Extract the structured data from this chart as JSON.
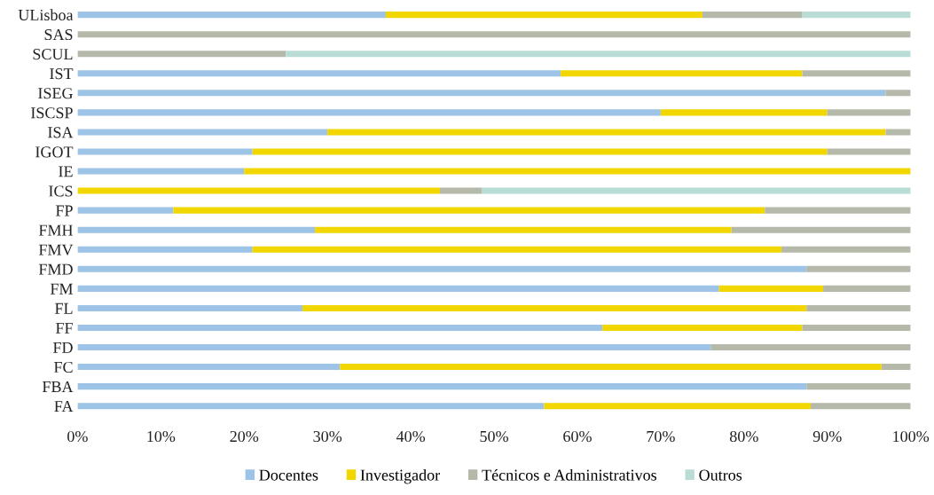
{
  "chart_data": {
    "type": "bar",
    "orientation": "horizontal",
    "stacked": true,
    "categories": [
      "ULisboa",
      "SAS",
      "SCUL",
      "IST",
      "ISEG",
      "ISCSP",
      "ISA",
      "IGOT",
      "IE",
      "ICS",
      "FP",
      "FMH",
      "FMV",
      "FMD",
      "FM",
      "FL",
      "FF",
      "FD",
      "FC",
      "FBA",
      "FA"
    ],
    "series": [
      {
        "name": "Docentes",
        "color": "#9dc3e6",
        "values": [
          37,
          0,
          0,
          58,
          97,
          70,
          30,
          21,
          20,
          0,
          11.5,
          28.5,
          21,
          87.5,
          77,
          27,
          63,
          76,
          31.5,
          87.5,
          56
        ]
      },
      {
        "name": "Investigador",
        "color": "#f2d600",
        "values": [
          38,
          0,
          0,
          29,
          0,
          20,
          67,
          69,
          80,
          43.5,
          71,
          50,
          63.5,
          0,
          12.5,
          60.5,
          24,
          0,
          65,
          0,
          32
        ]
      },
      {
        "name": "Técnicos e Administrativos",
        "color": "#b5b9a9",
        "values": [
          12,
          100,
          25,
          13,
          3,
          10,
          3,
          10,
          0,
          5,
          17.5,
          21.5,
          15.5,
          12.5,
          10.5,
          12.5,
          13,
          24,
          3.5,
          12.5,
          12
        ]
      },
      {
        "name": "Outros",
        "color": "#b9ddd6",
        "values": [
          13,
          0,
          75,
          0,
          0,
          0,
          0,
          0,
          0,
          51.5,
          0,
          0,
          0,
          0,
          0,
          0,
          0,
          0,
          0,
          0,
          0
        ]
      }
    ],
    "xlim": [
      0,
      100
    ],
    "xticks": [
      {
        "value": 0,
        "label": "0%"
      },
      {
        "value": 10,
        "label": "10%"
      },
      {
        "value": 20,
        "label": "20%"
      },
      {
        "value": 30,
        "label": "30%"
      },
      {
        "value": 40,
        "label": "40%"
      },
      {
        "value": 50,
        "label": "50%"
      },
      {
        "value": 60,
        "label": "60%"
      },
      {
        "value": 70,
        "label": "70%"
      },
      {
        "value": 80,
        "label": "80%"
      },
      {
        "value": 90,
        "label": "90%"
      },
      {
        "value": 100,
        "label": "100%"
      }
    ],
    "grid": false,
    "legend": "bottom"
  }
}
